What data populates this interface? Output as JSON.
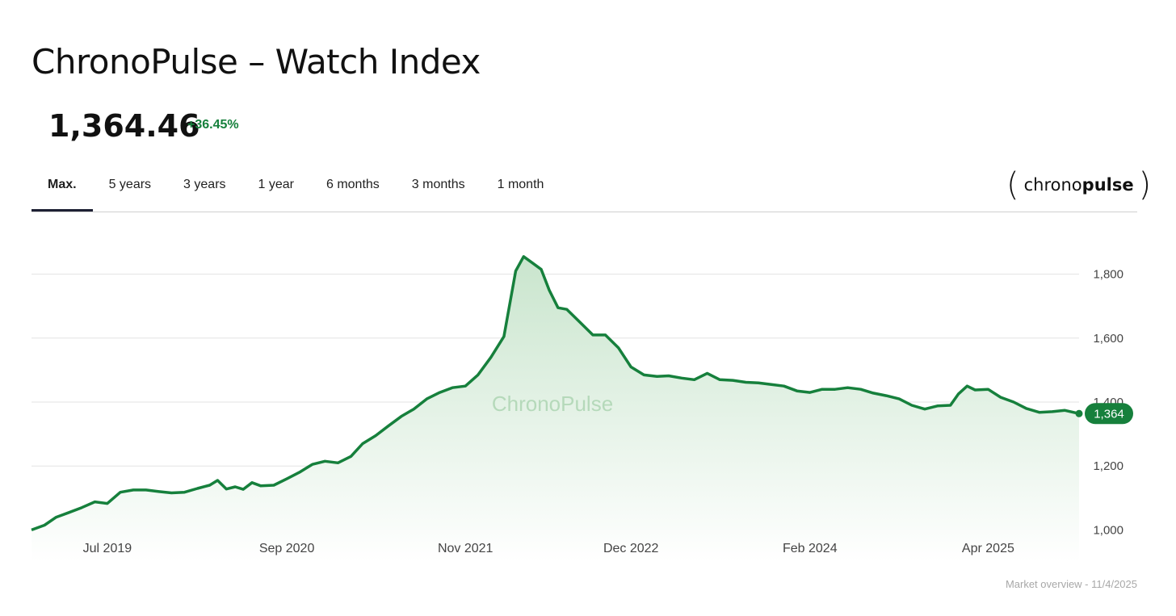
{
  "header": {
    "title": "ChronoPulse – Watch Index",
    "price": "1,364.46",
    "change": "+36.45%"
  },
  "tabs": [
    {
      "label": "Max.",
      "active": true
    },
    {
      "label": "5 years",
      "active": false
    },
    {
      "label": "3 years",
      "active": false
    },
    {
      "label": "1 year",
      "active": false
    },
    {
      "label": "6 months",
      "active": false
    },
    {
      "label": "3 months",
      "active": false
    },
    {
      "label": "1 month",
      "active": false
    }
  ],
  "logo": {
    "left_bracket": "(",
    "right_bracket": ")",
    "text_light": "chrono",
    "text_bold": "pulse"
  },
  "footer": {
    "text": "Market overview - 11/4/2025"
  },
  "colors": {
    "accent": "#16803c",
    "fill_top": "#c9e5cd",
    "gridline": "#e3e3e3",
    "axis_text": "#444444",
    "tab_underline": "#1d2033"
  },
  "chart_data": {
    "type": "area",
    "watermark": "ChronoPulse",
    "x_ticks": [
      "Jul 2019",
      "Sep 2020",
      "Nov 2021",
      "Dec 2022",
      "Feb 2024",
      "Apr 2025"
    ],
    "x_tick_dates": [
      "2019-07-01",
      "2020-09-01",
      "2021-11-01",
      "2022-12-01",
      "2024-02-01",
      "2025-04-01"
    ],
    "y_ticks": [
      1000,
      1200,
      1400,
      1600,
      1800
    ],
    "y_tick_labels": [
      "1,000",
      "1,200",
      "1,400",
      "1,600",
      "1,800"
    ],
    "ylim": [
      890,
      1900
    ],
    "grid": true,
    "last_value_label": "1,364",
    "series": [
      {
        "values": [
          [
            "2019-01-01",
            1000
          ],
          [
            "2019-02-01",
            1015
          ],
          [
            "2019-03-01",
            1040
          ],
          [
            "2019-04-01",
            1055
          ],
          [
            "2019-05-01",
            1070
          ],
          [
            "2019-06-01",
            1088
          ],
          [
            "2019-07-01",
            1083
          ],
          [
            "2019-08-01",
            1118
          ],
          [
            "2019-09-01",
            1125
          ],
          [
            "2019-10-01",
            1125
          ],
          [
            "2019-11-01",
            1120
          ],
          [
            "2019-12-01",
            1116
          ],
          [
            "2020-01-01",
            1118
          ],
          [
            "2020-02-01",
            1130
          ],
          [
            "2020-03-01",
            1140
          ],
          [
            "2020-03-20",
            1155
          ],
          [
            "2020-04-10",
            1128
          ],
          [
            "2020-05-01",
            1135
          ],
          [
            "2020-05-20",
            1127
          ],
          [
            "2020-06-10",
            1148
          ],
          [
            "2020-07-01",
            1138
          ],
          [
            "2020-08-01",
            1140
          ],
          [
            "2020-09-01",
            1160
          ],
          [
            "2020-10-01",
            1180
          ],
          [
            "2020-11-01",
            1205
          ],
          [
            "2020-12-01",
            1215
          ],
          [
            "2021-01-01",
            1210
          ],
          [
            "2021-02-01",
            1230
          ],
          [
            "2021-03-01",
            1270
          ],
          [
            "2021-04-01",
            1295
          ],
          [
            "2021-05-01",
            1325
          ],
          [
            "2021-06-01",
            1355
          ],
          [
            "2021-07-01",
            1378
          ],
          [
            "2021-08-01",
            1410
          ],
          [
            "2021-09-01",
            1430
          ],
          [
            "2021-10-01",
            1445
          ],
          [
            "2021-11-01",
            1450
          ],
          [
            "2021-12-01",
            1485
          ],
          [
            "2022-01-01",
            1540
          ],
          [
            "2022-02-01",
            1605
          ],
          [
            "2022-03-01",
            1810
          ],
          [
            "2022-03-20",
            1855
          ],
          [
            "2022-04-10",
            1835
          ],
          [
            "2022-05-01",
            1815
          ],
          [
            "2022-05-20",
            1750
          ],
          [
            "2022-06-10",
            1695
          ],
          [
            "2022-07-01",
            1690
          ],
          [
            "2022-08-01",
            1650
          ],
          [
            "2022-09-01",
            1610
          ],
          [
            "2022-10-01",
            1610
          ],
          [
            "2022-11-01",
            1570
          ],
          [
            "2022-12-01",
            1510
          ],
          [
            "2023-01-01",
            1485
          ],
          [
            "2023-02-01",
            1480
          ],
          [
            "2023-03-01",
            1482
          ],
          [
            "2023-04-01",
            1475
          ],
          [
            "2023-05-01",
            1470
          ],
          [
            "2023-06-01",
            1490
          ],
          [
            "2023-07-01",
            1470
          ],
          [
            "2023-08-01",
            1468
          ],
          [
            "2023-09-01",
            1462
          ],
          [
            "2023-10-01",
            1460
          ],
          [
            "2023-11-01",
            1455
          ],
          [
            "2023-12-01",
            1450
          ],
          [
            "2024-01-01",
            1435
          ],
          [
            "2024-02-01",
            1430
          ],
          [
            "2024-03-01",
            1440
          ],
          [
            "2024-04-01",
            1440
          ],
          [
            "2024-05-01",
            1445
          ],
          [
            "2024-06-01",
            1440
          ],
          [
            "2024-07-01",
            1428
          ],
          [
            "2024-08-01",
            1420
          ],
          [
            "2024-09-01",
            1410
          ],
          [
            "2024-10-01",
            1390
          ],
          [
            "2024-11-01",
            1378
          ],
          [
            "2024-12-01",
            1388
          ],
          [
            "2025-01-01",
            1390
          ],
          [
            "2025-01-20",
            1425
          ],
          [
            "2025-02-10",
            1450
          ],
          [
            "2025-03-01",
            1438
          ],
          [
            "2025-04-01",
            1440
          ],
          [
            "2025-05-01",
            1415
          ],
          [
            "2025-06-01",
            1400
          ],
          [
            "2025-07-01",
            1380
          ],
          [
            "2025-08-01",
            1368
          ],
          [
            "2025-09-01",
            1370
          ],
          [
            "2025-10-01",
            1374
          ],
          [
            "2025-11-04",
            1364
          ]
        ]
      }
    ]
  }
}
